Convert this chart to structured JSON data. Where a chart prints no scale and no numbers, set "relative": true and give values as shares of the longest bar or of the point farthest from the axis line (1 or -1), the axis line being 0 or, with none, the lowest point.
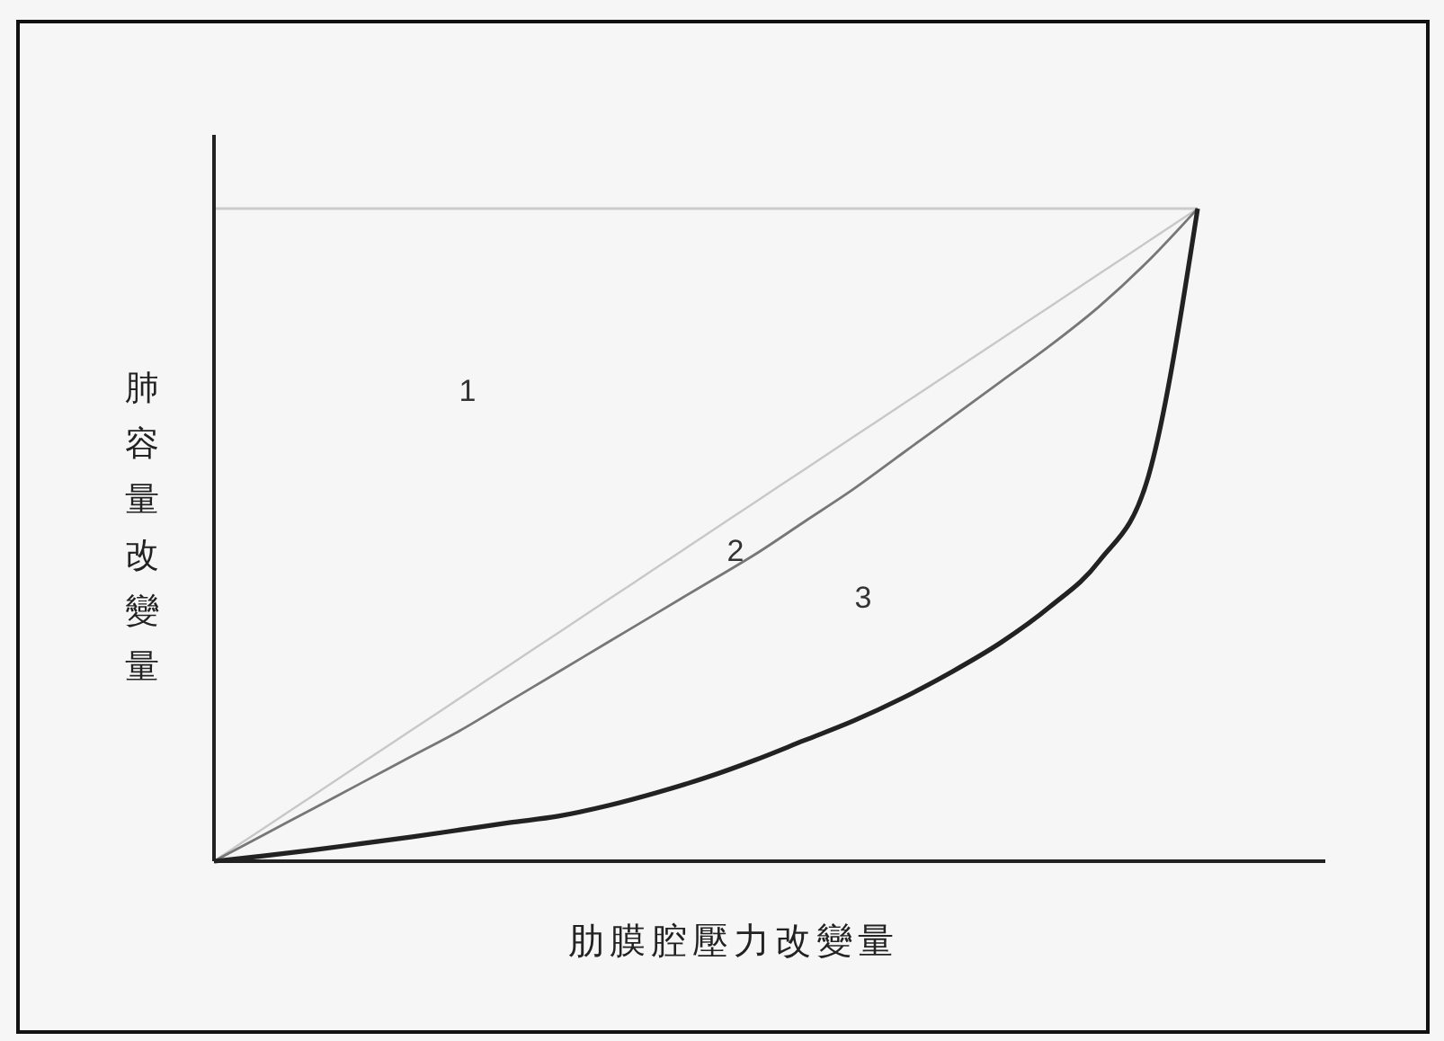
{
  "chart_data": {
    "type": "line",
    "relative": true,
    "xlabel": "肋膜腔壓力改變量",
    "ylabel": "肺容量改變量",
    "categories": [
      null,
      null,
      null,
      null,
      null,
      null,
      null,
      null,
      null,
      null,
      null,
      null,
      null,
      null,
      null,
      null,
      null,
      null,
      null,
      null,
      null
    ],
    "series": [
      {
        "color": "#c8c8c8",
        "values": [
          0,
          0.05,
          0.1,
          0.15,
          0.2,
          0.25,
          0.3,
          0.35,
          0.4,
          0.45,
          0.5,
          0.55,
          0.6,
          0.65,
          0.7,
          0.75,
          0.8,
          0.85,
          0.9,
          0.95,
          1
        ]
      },
      {
        "color": "#777777",
        "values": [
          0,
          0.04,
          0.08,
          0.12,
          0.16,
          0.2,
          0.245,
          0.29,
          0.335,
          0.38,
          0.425,
          0.47,
          0.52,
          0.57,
          0.625,
          0.68,
          0.735,
          0.79,
          0.85,
          0.92,
          1
        ]
      },
      {
        "color": "#222222",
        "values": [
          0,
          0.008,
          0.017,
          0.027,
          0.037,
          0.048,
          0.059,
          0.069,
          0.085,
          0.105,
          0.128,
          0.155,
          0.185,
          0.215,
          0.25,
          0.29,
          0.335,
          0.39,
          0.46,
          0.59,
          1
        ]
      }
    ],
    "ref_lines": [
      {
        "axis": "y",
        "value": 1,
        "color": "#cccccc"
      }
    ],
    "annotations": [
      "1",
      "2",
      "3"
    ],
    "marker": "none",
    "line_style": "solid"
  }
}
